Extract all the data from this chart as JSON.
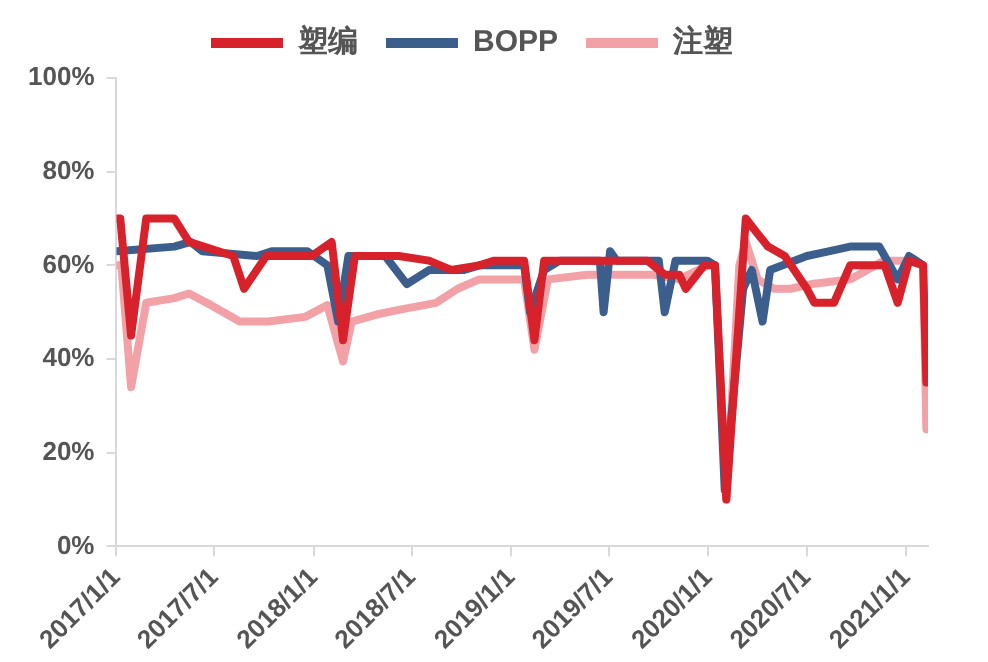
{
  "chart_data": {
    "type": "line",
    "legend": "top",
    "grid": false,
    "marker": "none",
    "line_style": "solid",
    "xlim": [
      "2017-01-01",
      "2021-02-10"
    ],
    "xticks": [
      {
        "value": "2017-01-01",
        "label": "2017/1/1"
      },
      {
        "value": "2017-07-01",
        "label": "2017/7/1"
      },
      {
        "value": "2018-01-01",
        "label": "2018/1/1"
      },
      {
        "value": "2018-07-01",
        "label": "2018/7/1"
      },
      {
        "value": "2019-01-01",
        "label": "2019/1/1"
      },
      {
        "value": "2019-07-01",
        "label": "2019/7/1"
      },
      {
        "value": "2020-01-01",
        "label": "2020/1/1"
      },
      {
        "value": "2020-07-01",
        "label": "2020/7/1"
      },
      {
        "value": "2021-01-01",
        "label": "2021/1/1"
      }
    ],
    "ylim": [
      0,
      1
    ],
    "yticks": [
      {
        "value": 0,
        "label": "0%"
      },
      {
        "value": 0.2,
        "label": "20%"
      },
      {
        "value": 0.4,
        "label": "40%"
      },
      {
        "value": 0.6,
        "label": "60%"
      },
      {
        "value": 0.8,
        "label": "80%"
      },
      {
        "value": 1,
        "label": "100%"
      }
    ],
    "series": [
      {
        "name": "塑编",
        "color": "#d7212b",
        "x": [
          "2017-01-01",
          "2017-01-08",
          "2017-01-28",
          "2017-02-25",
          "2017-04-18",
          "2017-05-15",
          "2017-08-05",
          "2017-08-25",
          "2017-10-05",
          "2017-12-28",
          "2018-02-03",
          "2018-02-24",
          "2018-03-18",
          "2018-06-07",
          "2018-08-02",
          "2018-09-12",
          "2018-11-03",
          "2018-12-01",
          "2019-01-25",
          "2019-02-13",
          "2019-03-03",
          "2019-09-10",
          "2019-10-12",
          "2019-11-08",
          "2019-11-20",
          "2019-12-24",
          "2020-01-13",
          "2020-02-03",
          "2020-03-10",
          "2020-03-30",
          "2020-04-20",
          "2020-05-21",
          "2020-07-01",
          "2020-07-15",
          "2020-08-20",
          "2020-09-19",
          "2020-11-22",
          "2020-12-16",
          "2021-01-06",
          "2021-02-01",
          "2021-02-07"
        ],
        "values": [
          0.7,
          0.7,
          0.45,
          0.7,
          0.7,
          0.65,
          0.62,
          0.55,
          0.62,
          0.62,
          0.65,
          0.44,
          0.62,
          0.62,
          0.61,
          0.59,
          0.6,
          0.61,
          0.61,
          0.44,
          0.61,
          0.61,
          0.58,
          0.58,
          0.55,
          0.6,
          0.6,
          0.1,
          0.7,
          0.67,
          0.64,
          0.62,
          0.55,
          0.52,
          0.52,
          0.6,
          0.6,
          0.52,
          0.61,
          0.6,
          0.35
        ]
      },
      {
        "name": "BOPP",
        "color": "#3b5e8c",
        "x": [
          "2017-01-01",
          "2017-04-18",
          "2017-05-18",
          "2017-06-09",
          "2017-09-18",
          "2017-10-15",
          "2017-12-20",
          "2018-01-26",
          "2018-02-15",
          "2018-03-06",
          "2018-05-13",
          "2018-06-22",
          "2018-08-02",
          "2018-10-06",
          "2018-11-03",
          "2019-01-25",
          "2019-02-05",
          "2019-03-03",
          "2019-04-01",
          "2019-06-14",
          "2019-06-21",
          "2019-07-03",
          "2019-07-15",
          "2019-10-01",
          "2019-10-12",
          "2019-11-01",
          "2019-12-30",
          "2020-01-13",
          "2020-01-31",
          "2020-03-05",
          "2020-03-21",
          "2020-04-10",
          "2020-04-24",
          "2020-07-01",
          "2020-08-10",
          "2020-09-19",
          "2020-11-12",
          "2020-12-16",
          "2021-01-06",
          "2021-02-01"
        ],
        "values": [
          0.63,
          0.64,
          0.65,
          0.63,
          0.62,
          0.63,
          0.63,
          0.6,
          0.48,
          0.62,
          0.62,
          0.56,
          0.59,
          0.59,
          0.6,
          0.6,
          0.5,
          0.59,
          0.61,
          0.61,
          0.5,
          0.63,
          0.61,
          0.61,
          0.5,
          0.61,
          0.61,
          0.6,
          0.12,
          0.55,
          0.59,
          0.48,
          0.59,
          0.62,
          0.63,
          0.64,
          0.64,
          0.57,
          0.62,
          0.6
        ]
      },
      {
        "name": "注塑",
        "color": "#f2a1a7",
        "x": [
          "2017-01-01",
          "2017-01-10",
          "2017-01-28",
          "2017-02-25",
          "2017-04-18",
          "2017-05-15",
          "2017-06-25",
          "2017-08-17",
          "2017-10-09",
          "2017-12-16",
          "2018-01-26",
          "2018-02-24",
          "2018-03-12",
          "2018-04-27",
          "2018-06-07",
          "2018-08-15",
          "2018-09-24",
          "2018-11-03",
          "2019-01-25",
          "2019-02-13",
          "2019-03-10",
          "2019-05-22",
          "2019-09-22",
          "2019-11-08",
          "2019-12-30",
          "2020-01-13",
          "2020-02-03",
          "2020-02-27",
          "2020-03-10",
          "2020-04-01",
          "2020-05-01",
          "2020-06-01",
          "2020-07-10",
          "2020-09-19",
          "2020-11-20",
          "2020-12-28",
          "2021-01-18",
          "2021-02-01",
          "2021-02-07"
        ],
        "values": [
          0.6,
          0.6,
          0.34,
          0.52,
          0.53,
          0.54,
          0.515,
          0.48,
          0.48,
          0.49,
          0.515,
          0.395,
          0.48,
          0.495,
          0.505,
          0.52,
          0.55,
          0.57,
          0.57,
          0.42,
          0.57,
          0.58,
          0.58,
          0.57,
          0.6,
          0.6,
          0.1,
          0.6,
          0.65,
          0.57,
          0.55,
          0.55,
          0.56,
          0.57,
          0.61,
          0.61,
          0.61,
          0.6,
          0.25
        ]
      }
    ]
  }
}
